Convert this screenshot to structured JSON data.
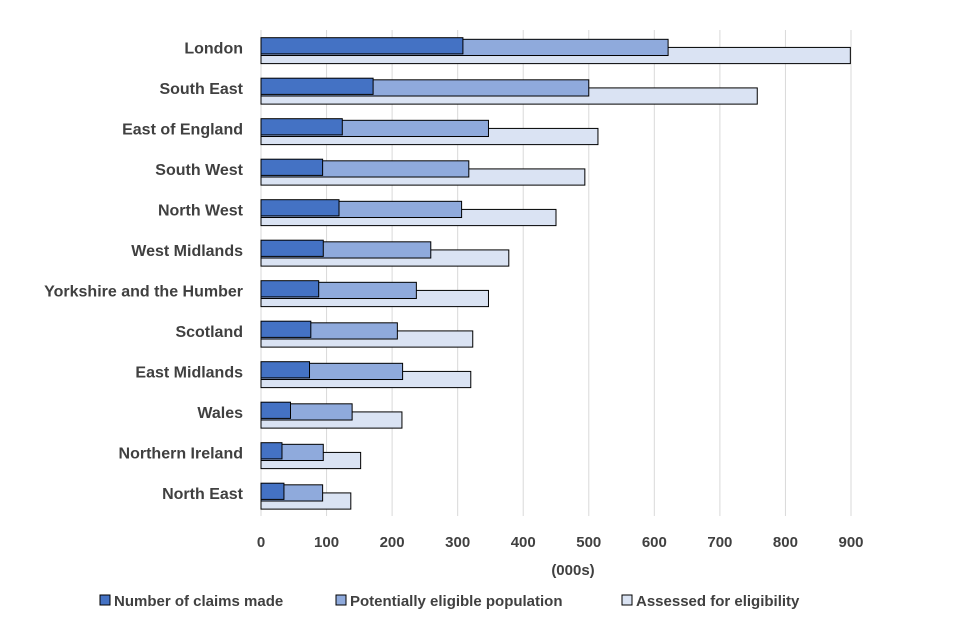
{
  "chart_data": {
    "type": "bar",
    "orientation": "horizontal",
    "title": "",
    "xlabel": "(000s)",
    "ylabel": "",
    "xlim": [
      0,
      900
    ],
    "xticks": [
      0,
      100,
      200,
      300,
      400,
      500,
      600,
      700,
      800,
      900
    ],
    "grid": true,
    "legend_position": "bottom",
    "categories": [
      "London",
      "South East",
      "East of England",
      "South West",
      "North West",
      "West Midlands",
      "Yorkshire and the Humber",
      "Scotland",
      "East Midlands",
      "Wales",
      "Northern Ireland",
      "North East"
    ],
    "series": [
      {
        "name": "Number of claims made",
        "color": "#4472c4",
        "values": [
          308,
          171,
          124,
          94,
          119,
          95,
          88,
          76,
          74,
          45,
          32,
          35
        ]
      },
      {
        "name": "Potentially eligible population",
        "color": "#8faadc",
        "values": [
          621,
          500,
          347,
          317,
          306,
          259,
          237,
          208,
          216,
          139,
          95,
          94
        ]
      },
      {
        "name": "Assessed for eligibility",
        "color": "#dae3f3",
        "values": [
          899,
          757,
          514,
          494,
          450,
          378,
          347,
          323,
          320,
          215,
          152,
          137
        ]
      }
    ]
  }
}
